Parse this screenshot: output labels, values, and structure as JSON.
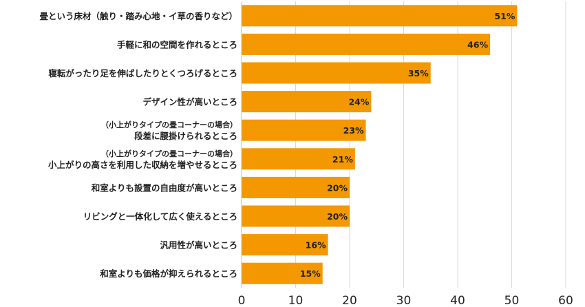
{
  "chart_data": {
    "type": "bar",
    "orientation": "horizontal",
    "categories": [
      {
        "note": "",
        "label": "畳という床材（触り・踏み心地・イ草の香りなど）"
      },
      {
        "note": "",
        "label": "手軽に和の空間を作れるところ"
      },
      {
        "note": "",
        "label": "寝転がったり足を伸ばしたりとくつろげるところ"
      },
      {
        "note": "",
        "label": "デザイン性が高いところ"
      },
      {
        "note": "（小上がりタイプの畳コーナーの場合）",
        "label": "段差に腰掛けられるところ"
      },
      {
        "note": "（小上がりタイプの畳コーナーの場合）",
        "label": "小上がりの高さを利用した収納を増やせるところ"
      },
      {
        "note": "",
        "label": "和室よりも設置の自由度が高いところ"
      },
      {
        "note": "",
        "label": "リビングと一体化して広く使えるところ"
      },
      {
        "note": "",
        "label": "汎用性が高いところ"
      },
      {
        "note": "",
        "label": "和室よりも価格が抑えられるところ"
      }
    ],
    "values": [
      51,
      46,
      35,
      24,
      23,
      21,
      20,
      20,
      16,
      15
    ],
    "value_labels": [
      "51%",
      "46%",
      "35%",
      "24%",
      "23%",
      "21%",
      "20%",
      "20%",
      "16%",
      "15%"
    ],
    "xlim": [
      0,
      60
    ],
    "xticks": [
      0,
      10,
      20,
      30,
      40,
      50,
      60
    ],
    "grid": true,
    "bar_color": "#F39800",
    "grid_color": "#D9D9D9",
    "text_color": "#222222"
  }
}
